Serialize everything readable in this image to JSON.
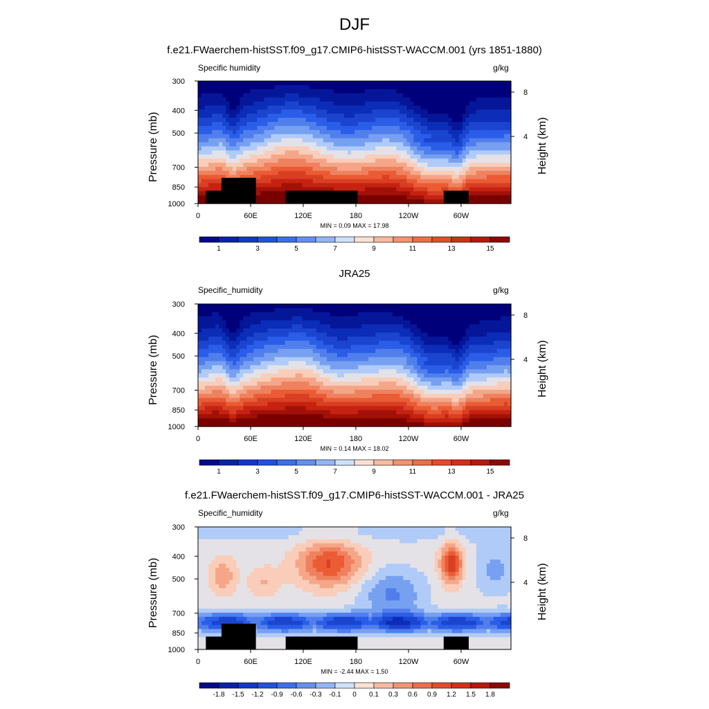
{
  "page_title": "DJF",
  "colors": {
    "land_mask": "#000000",
    "axis": "#000000"
  },
  "panels": [
    {
      "title": "f.e21.FWaerchem-histSST.f09_g17.CMIP6-histSST-WACCM.001 (yrs 1851-1880)",
      "variable_label": "Specific humidity",
      "units": "g/kg",
      "stats": "MIN =   0.09  MAX =   17.98",
      "colorbar_labels": [
        "1",
        "3",
        "5",
        "7",
        "9",
        "11",
        "13",
        "15"
      ]
    },
    {
      "title": "JRA25",
      "variable_label": "Specific_humidity",
      "units": "g/kg",
      "stats": "MIN =   0.14  MAX =   18.02",
      "colorbar_labels": [
        "1",
        "3",
        "5",
        "7",
        "9",
        "11",
        "13",
        "15"
      ]
    },
    {
      "title": "f.e21.FWaerchem-histSST.f09_g17.CMIP6-histSST-WACCM.001 - JRA25",
      "variable_label": "Specific_humidity",
      "units": "g/kg",
      "stats": "MIN =  -2.44  MAX =   1.50",
      "colorbar_labels": [
        "-1.8",
        "-1.5",
        "-1.2",
        "-0.9",
        "-0.6",
        "-0.3",
        "-0.1",
        "0",
        "0.1",
        "0.3",
        "0.6",
        "0.9",
        "1.2",
        "1.5",
        "1.8"
      ]
    }
  ],
  "chart_data": [
    {
      "type": "heatmap",
      "title": "f.e21.FWaerchem-histSST.f09_g17.CMIP6-histSST-WACCM.001 (yrs 1851-1880)",
      "variable": "Specific humidity",
      "units": "g/kg",
      "xlabel": "",
      "ylabel": "Pressure (mb)",
      "ylabel_right": "Height (km)",
      "x_ticks": [
        "0",
        "60E",
        "120E",
        "180",
        "120W",
        "60W"
      ],
      "y_ticks": [
        "300",
        "400",
        "500",
        "700",
        "850",
        "1000"
      ],
      "y_ticks_right": [
        "8",
        "4"
      ],
      "ylim": [
        1000,
        300
      ],
      "y_scale": "log",
      "min": 0.09,
      "max": 17.98,
      "contour_levels": [
        0,
        1,
        2,
        3,
        4,
        5,
        6,
        7,
        8,
        9,
        10,
        11,
        12,
        13,
        14,
        15,
        16
      ],
      "colorbar_ticks": [
        1,
        3,
        5,
        7,
        9,
        11,
        13,
        15
      ]
    },
    {
      "type": "heatmap",
      "title": "JRA25",
      "variable": "Specific_humidity",
      "units": "g/kg",
      "xlabel": "",
      "ylabel": "Pressure (mb)",
      "ylabel_right": "Height (km)",
      "x_ticks": [
        "0",
        "60E",
        "120E",
        "180",
        "120W",
        "60W"
      ],
      "y_ticks": [
        "300",
        "400",
        "500",
        "700",
        "850",
        "1000"
      ],
      "y_ticks_right": [
        "8",
        "4"
      ],
      "ylim": [
        1000,
        300
      ],
      "y_scale": "log",
      "min": 0.14,
      "max": 18.02,
      "contour_levels": [
        0,
        1,
        2,
        3,
        4,
        5,
        6,
        7,
        8,
        9,
        10,
        11,
        12,
        13,
        14,
        15,
        16
      ],
      "colorbar_ticks": [
        1,
        3,
        5,
        7,
        9,
        11,
        13,
        15
      ]
    },
    {
      "type": "heatmap",
      "title": "f.e21.FWaerchem-histSST.f09_g17.CMIP6-histSST-WACCM.001 - JRA25",
      "variable": "Specific_humidity",
      "units": "g/kg",
      "xlabel": "",
      "ylabel": "Pressure (mb)",
      "ylabel_right": "Height (km)",
      "x_ticks": [
        "0",
        "60E",
        "120E",
        "180",
        "120W",
        "60W"
      ],
      "y_ticks": [
        "300",
        "400",
        "500",
        "700",
        "850",
        "1000"
      ],
      "y_ticks_right": [
        "8",
        "4"
      ],
      "ylim": [
        1000,
        300
      ],
      "y_scale": "log",
      "min": -2.44,
      "max": 1.5,
      "contour_levels": [
        -2.1,
        -1.8,
        -1.5,
        -1.2,
        -0.9,
        -0.6,
        -0.3,
        -0.1,
        0,
        0.1,
        0.3,
        0.6,
        0.9,
        1.2,
        1.5,
        1.8,
        2.1
      ],
      "colorbar_ticks": [
        -1.8,
        -1.5,
        -1.2,
        -0.9,
        -0.6,
        -0.3,
        -0.1,
        0,
        0.1,
        0.3,
        0.6,
        0.9,
        1.2,
        1.5,
        1.8
      ]
    }
  ]
}
